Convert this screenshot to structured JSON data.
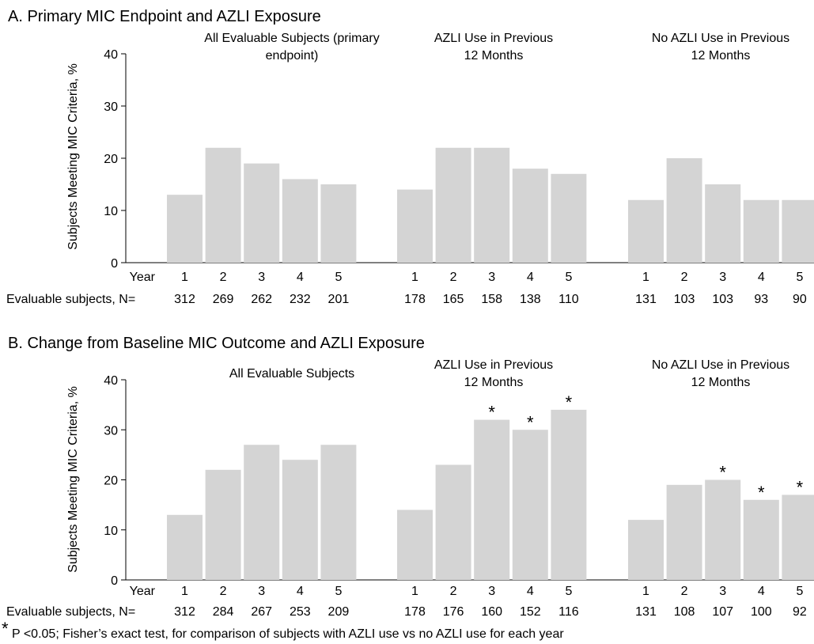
{
  "chart_data": [
    {
      "type": "bar",
      "title": "A. Primary MIC Endpoint and AZLI Exposure",
      "ylabel": "Subjects Meeting MIC Criteria, %",
      "ylim": [
        0,
        40
      ],
      "yticks": [
        "0",
        "10",
        "20",
        "30",
        "40"
      ],
      "x_label": "Year",
      "n_label": "Evaluable subjects, N=",
      "bar_color": "#d4d4d4",
      "groups": [
        {
          "name": "All Evaluable Subjects (primary endpoint)",
          "name_lines": [
            "All Evaluable Subjects (primary",
            "endpoint)"
          ],
          "categories": [
            "1",
            "2",
            "3",
            "4",
            "5"
          ],
          "values": [
            13,
            22,
            19,
            16,
            15
          ],
          "n": [
            "312",
            "269",
            "262",
            "232",
            "201"
          ],
          "significant": [
            false,
            false,
            false,
            false,
            false
          ]
        },
        {
          "name": "AZLI Use in Previous 12 Months",
          "name_lines": [
            "AZLI Use in Previous",
            "12 Months"
          ],
          "categories": [
            "1",
            "2",
            "3",
            "4",
            "5"
          ],
          "values": [
            14,
            22,
            22,
            18,
            17
          ],
          "n": [
            "178",
            "165",
            "158",
            "138",
            "110"
          ],
          "significant": [
            false,
            false,
            false,
            false,
            false
          ]
        },
        {
          "name": "No AZLI Use in Previous 12 Months",
          "name_lines": [
            "No AZLI Use in Previous",
            "12 Months"
          ],
          "categories": [
            "1",
            "2",
            "3",
            "4",
            "5"
          ],
          "values": [
            12,
            20,
            15,
            12,
            12
          ],
          "n": [
            "131",
            "103",
            "103",
            "93",
            "90"
          ],
          "significant": [
            false,
            false,
            false,
            false,
            false
          ]
        }
      ]
    },
    {
      "type": "bar",
      "title": "B. Change from Baseline MIC Outcome and AZLI Exposure",
      "ylabel": "Subjects Meeting MIC Criteria, %",
      "ylim": [
        0,
        40
      ],
      "yticks": [
        "0",
        "10",
        "20",
        "30",
        "40"
      ],
      "x_label": "Year",
      "n_label": "Evaluable subjects, N=",
      "bar_color": "#d4d4d4",
      "groups": [
        {
          "name": "All Evaluable Subjects",
          "name_lines": [
            "All Evaluable Subjects"
          ],
          "categories": [
            "1",
            "2",
            "3",
            "4",
            "5"
          ],
          "values": [
            13,
            22,
            27,
            24,
            27
          ],
          "n": [
            "312",
            "284",
            "267",
            "253",
            "209"
          ],
          "significant": [
            false,
            false,
            false,
            false,
            false
          ]
        },
        {
          "name": "AZLI Use in Previous 12 Months",
          "name_lines": [
            "AZLI Use in Previous",
            "12 Months"
          ],
          "categories": [
            "1",
            "2",
            "3",
            "4",
            "5"
          ],
          "values": [
            14,
            23,
            32,
            30,
            34
          ],
          "n": [
            "178",
            "176",
            "160",
            "152",
            "116"
          ],
          "significant": [
            false,
            false,
            true,
            true,
            true
          ]
        },
        {
          "name": "No AZLI Use in Previous 12 Months",
          "name_lines": [
            "No AZLI Use in Previous",
            "12 Months"
          ],
          "categories": [
            "1",
            "2",
            "3",
            "4",
            "5"
          ],
          "values": [
            12,
            19,
            20,
            16,
            17
          ],
          "n": [
            "131",
            "108",
            "107",
            "100",
            "92"
          ],
          "significant": [
            false,
            false,
            true,
            true,
            true
          ]
        }
      ]
    }
  ],
  "significance_marker": "*",
  "footnote": {
    "marker": "*",
    "text": "P <0.05; Fisher’s exact test, for comparison of subjects with AZLI use vs no AZLI use for each year"
  }
}
